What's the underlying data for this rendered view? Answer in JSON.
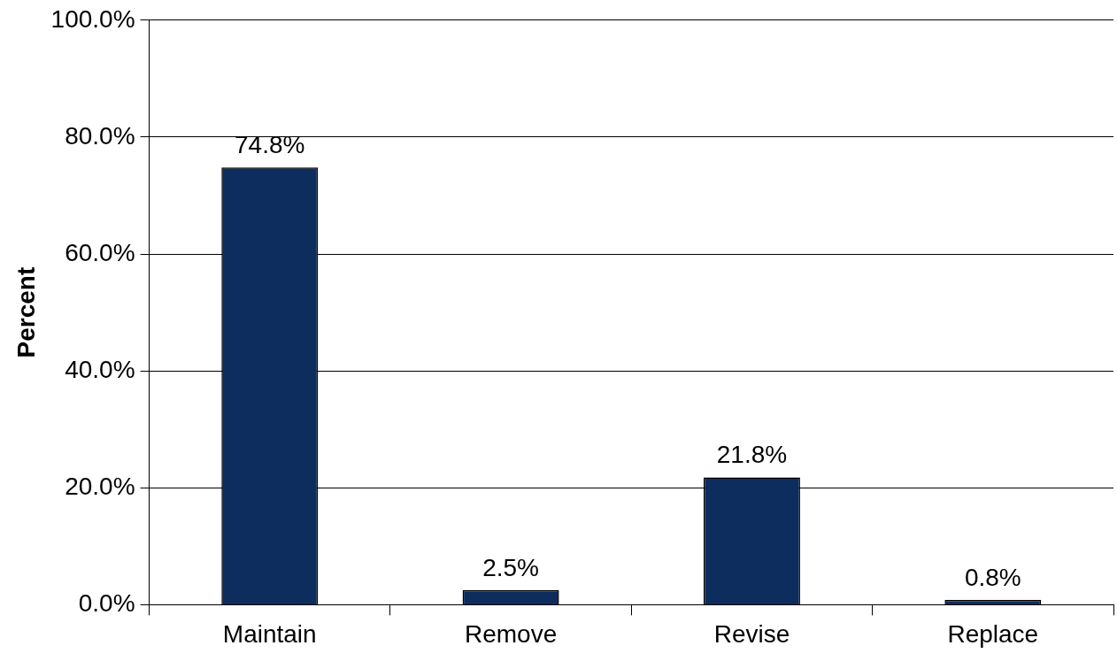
{
  "chart_data": {
    "type": "bar",
    "ylabel": "Percent",
    "categories": [
      "Maintain",
      "Remove",
      "Revise",
      "Replace"
    ],
    "values": [
      74.8,
      2.5,
      21.8,
      0.8
    ],
    "value_labels": [
      "74.8%",
      "2.5%",
      "21.8%",
      "0.8%"
    ],
    "color": "#0c2d5e",
    "ylim": [
      0,
      100
    ],
    "yticks": [
      {
        "value": 0,
        "label": "0.0%"
      },
      {
        "value": 20,
        "label": "20.0%"
      },
      {
        "value": 40,
        "label": "40.0%"
      },
      {
        "value": 60,
        "label": "60.0%"
      },
      {
        "value": 80,
        "label": "80.0%"
      },
      {
        "value": 100,
        "label": "100.0%"
      }
    ],
    "grid": "y",
    "legend": false
  }
}
